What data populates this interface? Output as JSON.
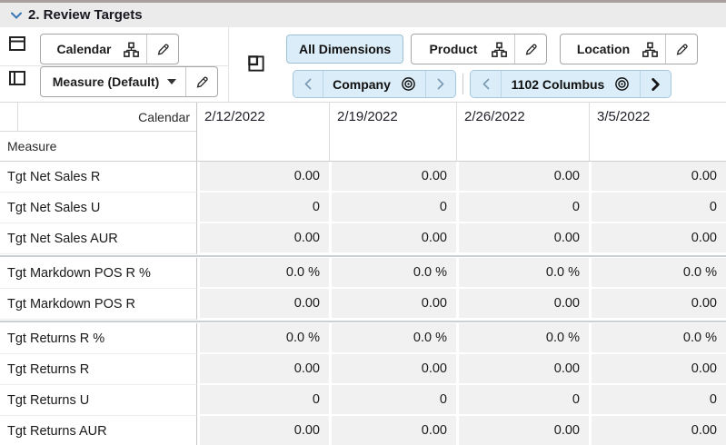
{
  "header": {
    "title": "2. Review Targets"
  },
  "toolbar": {
    "calendar_tile": {
      "label": "Calendar"
    },
    "measure_tile": {
      "label": "Measure (Default)"
    },
    "all_dimensions_label": "All Dimensions",
    "product_tile": {
      "label": "Product"
    },
    "location_tile": {
      "label": "Location"
    },
    "company_pill": {
      "label": "Company"
    },
    "location_pill": {
      "label": "1102 Columbus"
    }
  },
  "grid": {
    "corner_col_label": "Calendar",
    "corner_row_label": "Measure",
    "columns": [
      "2/12/2022",
      "2/19/2022",
      "2/26/2022",
      "3/5/2022"
    ],
    "rows": [
      {
        "label": "Tgt Net Sales R",
        "values": [
          "0.00",
          "0.00",
          "0.00",
          "0.00"
        ]
      },
      {
        "label": "Tgt Net Sales U",
        "values": [
          "0",
          "0",
          "0",
          "0"
        ]
      },
      {
        "label": "Tgt Net Sales AUR",
        "values": [
          "0.00",
          "0.00",
          "0.00",
          "0.00"
        ]
      },
      {
        "label": "Tgt Markdown POS R %",
        "values": [
          "0.0 %",
          "0.0 %",
          "0.0 %",
          "0.0 %"
        ],
        "group_start": true
      },
      {
        "label": "Tgt Markdown POS R",
        "values": [
          "0.00",
          "0.00",
          "0.00",
          "0.00"
        ]
      },
      {
        "label": "Tgt Returns R %",
        "values": [
          "0.0 %",
          "0.0 %",
          "0.0 %",
          "0.0 %"
        ],
        "group_start": true
      },
      {
        "label": "Tgt Returns R",
        "values": [
          "0.00",
          "0.00",
          "0.00",
          "0.00"
        ]
      },
      {
        "label": "Tgt Returns U",
        "values": [
          "0",
          "0",
          "0",
          "0"
        ]
      },
      {
        "label": "Tgt Returns AUR",
        "values": [
          "0.00",
          "0.00",
          "0.00",
          "0.00"
        ]
      }
    ]
  },
  "colors": {
    "accent_blue_bg": "#dbedf8",
    "accent_blue_border": "#9cc0d6",
    "title_chevron_blue": "#3676b5",
    "cell_bg": "#f1f1f1",
    "group_separator": "#c9d0d6",
    "titlebar_bg": "#ebebeb"
  },
  "icons": [
    "chevron-down-icon",
    "row-axis-icon",
    "column-axis-icon",
    "page-intersection-icon",
    "hierarchy-icon",
    "pencil-icon",
    "caret-down-icon",
    "chevron-left-icon",
    "chevron-right-icon",
    "bullseye-icon"
  ]
}
